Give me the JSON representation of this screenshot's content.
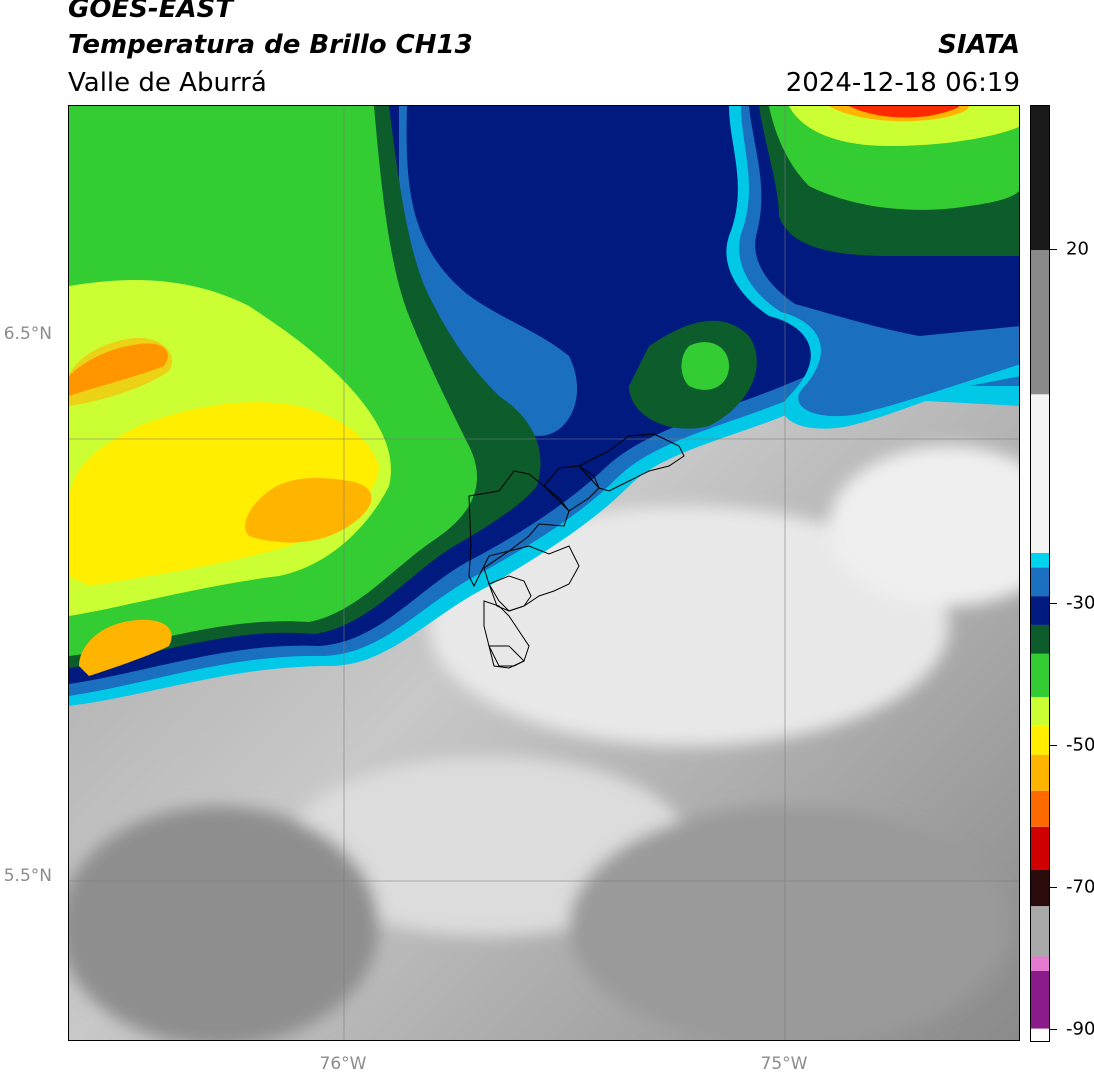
{
  "header": {
    "satellite": "GOES-EAST",
    "product": "Temperatura de Brillo CH13",
    "region": "Valle de Aburrá",
    "agency": "SIATA",
    "datetime": "2024-12-18 06:19"
  },
  "map": {
    "lat_labels": [
      "6.5°N",
      "5.5°N"
    ],
    "lon_labels": [
      "76°W",
      "75°W"
    ],
    "regions": {
      "cold_cloud_northwest": "green-yellow",
      "cold_cloud_northeast": "green-red",
      "warm_clear_south": "gray"
    }
  },
  "colorbar": {
    "tick_labels": [
      "20",
      "-30",
      "-50",
      "-70",
      "-90"
    ],
    "min": -90,
    "max": 40,
    "segments": [
      {
        "from": -90,
        "to": -88,
        "color": "#ffffff"
      },
      {
        "from": -88,
        "to": -80,
        "color": "#8b1a8b"
      },
      {
        "from": -80,
        "to": -78,
        "color": "#e67ad0"
      },
      {
        "from": -78,
        "to": -71,
        "color": "#a9a9a9"
      },
      {
        "from": -71,
        "to": -66,
        "color": "#2a0a0a"
      },
      {
        "from": -66,
        "to": -60,
        "color": "#d10000"
      },
      {
        "from": -60,
        "to": -55,
        "color": "#ff6a00"
      },
      {
        "from": -55,
        "to": -50,
        "color": "#ffb400"
      },
      {
        "from": -50,
        "to": -46,
        "color": "#ffee00"
      },
      {
        "from": -46,
        "to": -42,
        "color": "#ccff33"
      },
      {
        "from": -42,
        "to": -36,
        "color": "#33cc33"
      },
      {
        "from": -36,
        "to": -32,
        "color": "#0c5c2c"
      },
      {
        "from": -32,
        "to": -28,
        "color": "#001a80"
      },
      {
        "from": -28,
        "to": -24,
        "color": "#1a6fbf"
      },
      {
        "from": -24,
        "to": -22,
        "color": "#00d4ee"
      },
      {
        "from": -22,
        "to": 0,
        "color": "#f4f4f4"
      },
      {
        "from": 0,
        "to": 20,
        "color": "#8a8a8a"
      },
      {
        "from": 20,
        "to": 40,
        "color": "#1a1a1a"
      }
    ]
  }
}
